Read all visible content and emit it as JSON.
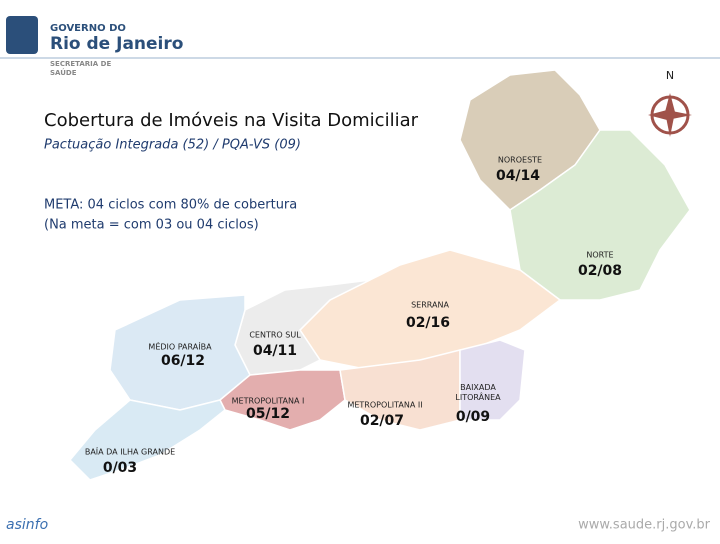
{
  "header": {
    "line1": "GOVERNO DO",
    "line2": "Rio de Janeiro",
    "dept1": "SECRETARIA DE",
    "dept2": "SAÚDE"
  },
  "compass": "N",
  "title": "Cobertura de Imóveis na Visita Domiciliar",
  "subtitle": "Pactuação Integrada (52) / PQA-VS (09)",
  "meta": [
    "META: 04 ciclos com 80% de cobertura",
    "(Na meta =  com 03 ou 04 ciclos)"
  ],
  "regions": [
    {
      "name": "NOROESTE",
      "value": "04/14"
    },
    {
      "name": "NORTE",
      "value": "02/08"
    },
    {
      "name": "SERRANA",
      "value": "02/16"
    },
    {
      "name": "CENTRO SUL",
      "value": "04/11"
    },
    {
      "name": "MÉDIO PARAÍBA",
      "value": "06/12"
    },
    {
      "name": "METROPOLITANA I",
      "value": "05/12"
    },
    {
      "name": "METROPOLITANA II",
      "value": "02/07"
    },
    {
      "name": "BAIXADA LITORÂNEA",
      "value": "0/09"
    },
    {
      "name": "BAÍA DA ILHA GRANDE",
      "value": "0/03"
    }
  ],
  "footer": {
    "brand": "asinfo",
    "url": "www.saude.rj.gov.br"
  }
}
